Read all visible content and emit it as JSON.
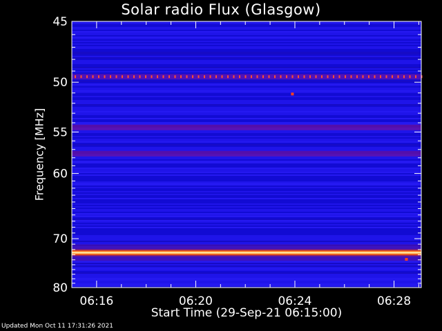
{
  "chart_data": {
    "type": "heatmap",
    "title": "Solar radio Flux (Glasgow)",
    "xlabel": "Start Time (29-Sep-21 06:15:00)",
    "ylabel": "Frequency [MHz]",
    "x_ticks": [
      "06:16",
      "06:20",
      "06:24",
      "06:28"
    ],
    "x_tick_minutes": [
      1,
      5,
      9,
      13
    ],
    "x_range_minutes": [
      0,
      14.1
    ],
    "y_ticks": [
      45,
      50,
      55,
      60,
      70,
      80
    ],
    "ylim": [
      45,
      80
    ],
    "y_scale": "reciprocal",
    "bands": [
      {
        "freq": 49.5,
        "intensity": "medium-dotted"
      },
      {
        "freq": 54.5,
        "intensity": "low"
      },
      {
        "freq": 57.5,
        "intensity": "low"
      },
      {
        "freq": 72.6,
        "intensity": "high"
      }
    ],
    "spots": [
      {
        "minute": 8.9,
        "freq": 51.1
      },
      {
        "minute": 13.5,
        "freq": 73.9
      }
    ],
    "colors": {
      "background": "#000000",
      "low": "#1a10e0",
      "mid": "#6a10a0",
      "high": "#ffff80"
    }
  },
  "footer": "Updated Mon Oct 11 17:31:26 2021"
}
